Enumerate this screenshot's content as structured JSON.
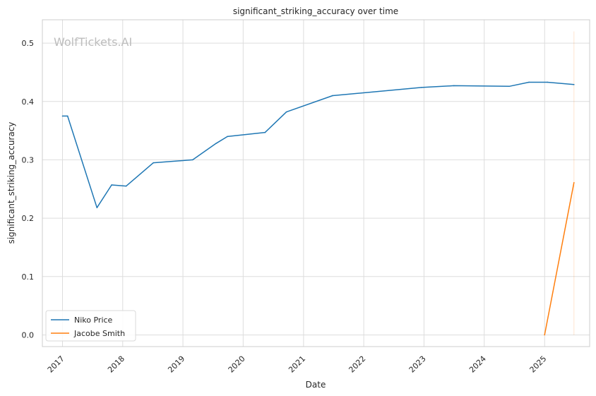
{
  "chart_data": {
    "type": "line",
    "title": "significant_striking_accuracy over time",
    "xlabel": "Date",
    "ylabel": "significant_striking_accuracy",
    "watermark": "WolfTickets.AI",
    "xlim": [
      "2016-09-01",
      "2025-10-01"
    ],
    "ylim": [
      -0.02,
      0.54
    ],
    "x_ticks": [
      {
        "date": "2017-01-01",
        "label": "2017"
      },
      {
        "date": "2018-01-01",
        "label": "2018"
      },
      {
        "date": "2019-01-01",
        "label": "2019"
      },
      {
        "date": "2020-01-01",
        "label": "2020"
      },
      {
        "date": "2021-01-01",
        "label": "2021"
      },
      {
        "date": "2022-01-01",
        "label": "2022"
      },
      {
        "date": "2023-01-01",
        "label": "2023"
      },
      {
        "date": "2024-01-01",
        "label": "2024"
      },
      {
        "date": "2025-01-01",
        "label": "2025"
      }
    ],
    "y_ticks": [
      {
        "value": 0.0,
        "label": "0.0"
      },
      {
        "value": 0.1,
        "label": "0.1"
      },
      {
        "value": 0.2,
        "label": "0.2"
      },
      {
        "value": 0.3,
        "label": "0.3"
      },
      {
        "value": 0.4,
        "label": "0.4"
      },
      {
        "value": 0.5,
        "label": "0.5"
      }
    ],
    "grid": true,
    "legend_position": "lower-left",
    "series": [
      {
        "name": "Niko Price",
        "color": "#1f77b4",
        "points": [
          {
            "x": "2017-01-01",
            "y": 0.375
          },
          {
            "x": "2017-02-01",
            "y": 0.375
          },
          {
            "x": "2017-07-29",
            "y": 0.218
          },
          {
            "x": "2017-10-26",
            "y": 0.257
          },
          {
            "x": "2018-01-22",
            "y": 0.255
          },
          {
            "x": "2018-07-06",
            "y": 0.295
          },
          {
            "x": "2019-03-01",
            "y": 0.3
          },
          {
            "x": "2019-07-20",
            "y": 0.328
          },
          {
            "x": "2019-09-28",
            "y": 0.34
          },
          {
            "x": "2020-05-13",
            "y": 0.347
          },
          {
            "x": "2020-09-19",
            "y": 0.382
          },
          {
            "x": "2021-06-26",
            "y": 0.41
          },
          {
            "x": "2022-12-17",
            "y": 0.424
          },
          {
            "x": "2023-07-01",
            "y": 0.427
          },
          {
            "x": "2024-06-01",
            "y": 0.426
          },
          {
            "x": "2024-09-28",
            "y": 0.433
          },
          {
            "x": "2025-01-18",
            "y": 0.433
          },
          {
            "x": "2025-06-28",
            "y": 0.429
          }
        ]
      },
      {
        "name": "Jacobe Smith",
        "color": "#ff7f0e",
        "points": [
          {
            "x": "2025-01-01",
            "y": 0.0
          },
          {
            "x": "2025-06-28",
            "y": 0.261
          }
        ]
      }
    ],
    "annotations": [
      {
        "type": "vertical-band",
        "x": "2025-06-28",
        "y_from": 0.0,
        "y_to": 0.52,
        "color": "#ff7f0e"
      }
    ]
  }
}
